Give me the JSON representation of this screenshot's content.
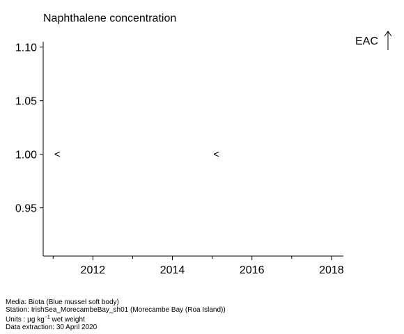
{
  "chart_data": {
    "type": "scatter",
    "title": "Naphthalene concentration",
    "xlabel": "",
    "ylabel": "",
    "xlim": [
      2010.75,
      2018.3
    ],
    "ylim": [
      0.905,
      1.105
    ],
    "xticks": [
      2012,
      2014,
      2016,
      2018
    ],
    "xminor": [
      2011,
      2013,
      2015,
      2017
    ],
    "yticks": [
      0.95,
      1.0,
      1.05,
      1.1
    ],
    "ytick_labels": [
      "0.95",
      "1.00",
      "1.05",
      "1.10"
    ],
    "points": [
      {
        "x": 2011,
        "y": 1.0,
        "marker": "<"
      },
      {
        "x": 2015,
        "y": 1.0,
        "marker": "<"
      }
    ],
    "grid": false,
    "eac_label": "EAC"
  },
  "footer": {
    "media": "Media: Biota (Blue mussel soft body)",
    "station": "Station: IrishSea_MorecambeBay_sh01 (Morecambe Bay (Roa Island))",
    "units_prefix": "Units : µg kg",
    "units_exp": "−1",
    "units_suffix": " wet weight",
    "extraction": "Data extraction: 30 April 2020"
  }
}
